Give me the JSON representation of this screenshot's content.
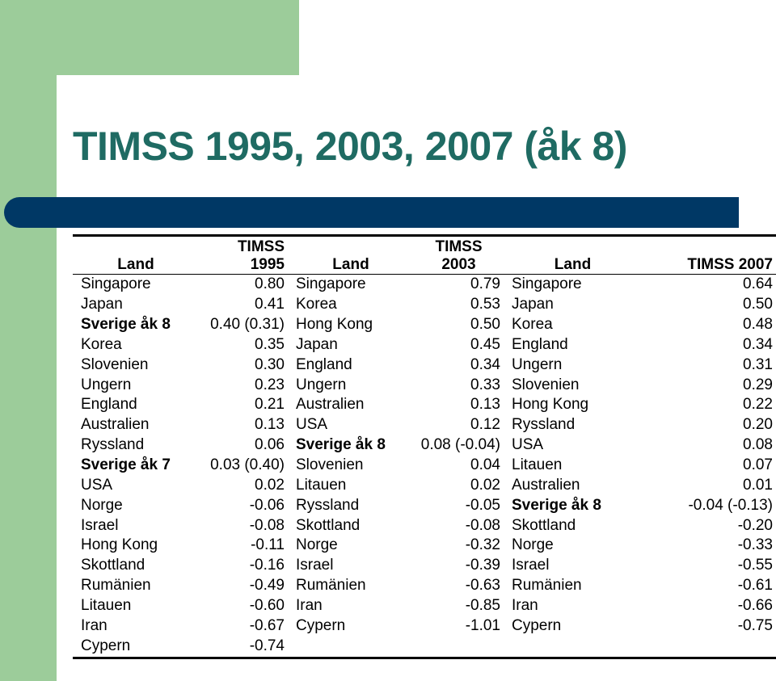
{
  "title": "TIMSS 1995, 2003, 2007 (åk 8)",
  "headers": {
    "land1": "Land",
    "timss1995": "TIMSS 1995",
    "land2": "Land",
    "timss2003_line1": "TIMSS",
    "timss2003_line2": "2003",
    "land3": "Land",
    "timss2007": "TIMSS 2007"
  },
  "rows": [
    {
      "c1": "Singapore",
      "v1": "0.80",
      "c2": "Singapore",
      "v2": "0.79",
      "c3": "Singapore",
      "v3": "0.64"
    },
    {
      "c1": "Japan",
      "v1": "0.41",
      "c2": "Korea",
      "v2": "0.53",
      "c3": "Japan",
      "v3": "0.50"
    },
    {
      "c1": "Sverige åk 8",
      "v1": "0.40 (0.31)",
      "c2": "Hong Kong",
      "v2": "0.50",
      "c3": "Korea",
      "v3": "0.48"
    },
    {
      "c1": "Korea",
      "v1": "0.35",
      "c2": "Japan",
      "v2": "0.45",
      "c3": "England",
      "v3": "0.34"
    },
    {
      "c1": "Slovenien",
      "v1": "0.30",
      "c2": "England",
      "v2": "0.34",
      "c3": "Ungern",
      "v3": "0.31"
    },
    {
      "c1": "Ungern",
      "v1": "0.23",
      "c2": "Ungern",
      "v2": "0.33",
      "c3": "Slovenien",
      "v3": "0.29"
    },
    {
      "c1": "England",
      "v1": "0.21",
      "c2": "Australien",
      "v2": "0.13",
      "c3": "Hong Kong",
      "v3": "0.22"
    },
    {
      "c1": "Australien",
      "v1": "0.13",
      "c2": "USA",
      "v2": "0.12",
      "c3": "Ryssland",
      "v3": "0.20"
    },
    {
      "c1": "Ryssland",
      "v1": "0.06",
      "c2": "Sverige åk 8",
      "v2": "0.08 (-0.04)",
      "c3": "USA",
      "v3": "0.08"
    },
    {
      "c1": "Sverige åk 7",
      "v1": "0.03 (0.40)",
      "c2": "Slovenien",
      "v2": "0.04",
      "c3": "Litauen",
      "v3": "0.07"
    },
    {
      "c1": "USA",
      "v1": "0.02",
      "c2": "Litauen",
      "v2": "0.02",
      "c3": "Australien",
      "v3": "0.01"
    },
    {
      "c1": "Norge",
      "v1": "-0.06",
      "c2": "Ryssland",
      "v2": "-0.05",
      "c3": "Sverige åk 8",
      "v3": "-0.04 (-0.13)"
    },
    {
      "c1": "Israel",
      "v1": "-0.08",
      "c2": "Skottland",
      "v2": "-0.08",
      "c3": "Skottland",
      "v3": "-0.20"
    },
    {
      "c1": "Hong Kong",
      "v1": "-0.11",
      "c2": "Norge",
      "v2": "-0.32",
      "c3": "Norge",
      "v3": "-0.33"
    },
    {
      "c1": "Skottland",
      "v1": "-0.16",
      "c2": "Israel",
      "v2": "-0.39",
      "c3": "Israel",
      "v3": "-0.55"
    },
    {
      "c1": "Rumänien",
      "v1": "-0.49",
      "c2": "Rumänien",
      "v2": "-0.63",
      "c3": "Rumänien",
      "v3": "-0.61"
    },
    {
      "c1": "Litauen",
      "v1": "-0.60",
      "c2": "Iran",
      "v2": "-0.85",
      "c3": "Iran",
      "v3": "-0.66"
    },
    {
      "c1": "Iran",
      "v1": "-0.67",
      "c2": "Cypern",
      "v2": "-1.01",
      "c3": "Cypern",
      "v3": "-0.75"
    },
    {
      "c1": "Cypern",
      "v1": "-0.74",
      "c2": "",
      "v2": "",
      "c3": "",
      "v3": ""
    }
  ],
  "bold_cells": [
    {
      "row": 2,
      "col": "c1"
    },
    {
      "row": 9,
      "col": "c1"
    },
    {
      "row": 8,
      "col": "c2"
    },
    {
      "row": 11,
      "col": "c3"
    }
  ]
}
